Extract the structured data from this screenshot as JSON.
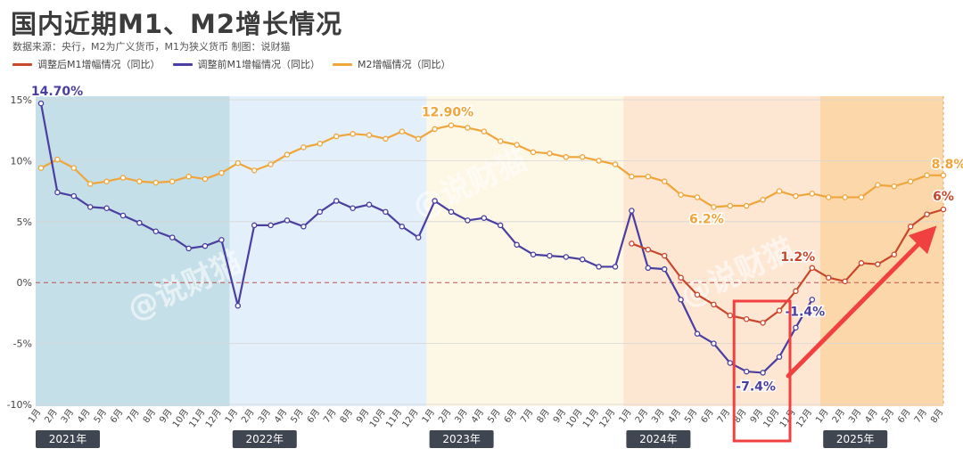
{
  "header": {
    "title": "国内近期M1、M2增长情况",
    "subtitle": "数据来源：央行，M2为广义货币，M1为狭义货币    制图：说财猫"
  },
  "legend": [
    {
      "label": "调整后M1增幅情况（同比）",
      "color": "#c8472b"
    },
    {
      "label": "调整前M1增幅情况（同比）",
      "color": "#4a3fa0"
    },
    {
      "label": "M2增幅情况（同比）",
      "color": "#f0a53a"
    }
  ],
  "watermark": "@说财猫",
  "chart_data": {
    "type": "line",
    "ylim": [
      -10,
      15
    ],
    "yticks": [
      15,
      10,
      5,
      0,
      -5,
      -10
    ],
    "ytick_labels": [
      "15%",
      "10%",
      "5%",
      "0%",
      "-5%",
      "-10%"
    ],
    "x_labels": [
      "1月",
      "2月",
      "3月",
      "4月",
      "5月",
      "6月",
      "7月",
      "8月",
      "9月",
      "10月",
      "11月",
      "12月",
      "1月",
      "2月",
      "3月",
      "4月",
      "5月",
      "6月",
      "7月",
      "8月",
      "9月",
      "10月",
      "11月",
      "12月",
      "1月",
      "2月",
      "3月",
      "4月",
      "5月",
      "6月",
      "7月",
      "8月",
      "9月",
      "10月",
      "11月",
      "12月",
      "1月",
      "2月",
      "3月",
      "4月",
      "5月",
      "6月",
      "7月",
      "8月",
      "9月",
      "10月",
      "11月",
      "12月",
      "1月",
      "2月",
      "3月",
      "4月",
      "5月",
      "6月",
      "7月",
      "8月"
    ],
    "year_labels": [
      "2021年",
      "2022年",
      "2023年",
      "2024年",
      "2025年"
    ],
    "year_start_index": [
      0,
      12,
      24,
      36,
      48
    ],
    "series": [
      {
        "name": "M2增幅情况（同比）",
        "color": "#f0a53a",
        "values": [
          9.4,
          10.1,
          9.4,
          8.1,
          8.3,
          8.6,
          8.3,
          8.2,
          8.3,
          8.7,
          8.5,
          9.0,
          9.8,
          9.2,
          9.7,
          10.5,
          11.1,
          11.4,
          12.0,
          12.2,
          12.1,
          11.8,
          12.4,
          11.8,
          12.6,
          12.9,
          12.7,
          12.4,
          11.6,
          11.3,
          10.7,
          10.6,
          10.3,
          10.3,
          10.0,
          9.7,
          8.7,
          8.7,
          8.3,
          7.2,
          7.0,
          6.2,
          6.3,
          6.3,
          6.8,
          7.5,
          7.1,
          7.3,
          7.0,
          7.0,
          7.0,
          8.0,
          7.9,
          8.3,
          8.8,
          8.8
        ]
      },
      {
        "name": "调整前M1增幅情况（同比）",
        "color": "#4a3fa0",
        "values": [
          14.7,
          7.4,
          7.1,
          6.2,
          6.1,
          5.5,
          4.9,
          4.2,
          3.7,
          2.8,
          3.0,
          3.5,
          -1.9,
          4.7,
          4.7,
          5.1,
          4.6,
          5.8,
          6.7,
          6.1,
          6.4,
          5.8,
          4.6,
          3.7,
          6.7,
          5.8,
          5.1,
          5.3,
          4.7,
          3.1,
          2.3,
          2.2,
          2.1,
          1.9,
          1.3,
          1.3,
          5.9,
          1.2,
          1.1,
          -1.4,
          -4.2,
          -5.0,
          -6.6,
          -7.3,
          -7.4,
          -6.1,
          -3.7,
          -1.4,
          null,
          null,
          null,
          null,
          null,
          null,
          null,
          null
        ]
      },
      {
        "name": "调整后M1增幅情况（同比）",
        "color": "#c8472b",
        "values": [
          null,
          null,
          null,
          null,
          null,
          null,
          null,
          null,
          null,
          null,
          null,
          null,
          null,
          null,
          null,
          null,
          null,
          null,
          null,
          null,
          null,
          null,
          null,
          null,
          null,
          null,
          null,
          null,
          null,
          null,
          null,
          null,
          null,
          null,
          null,
          null,
          3.2,
          2.7,
          2.2,
          0.4,
          -1.0,
          -1.8,
          -2.7,
          -3.0,
          -3.3,
          -2.3,
          -0.7,
          1.2,
          0.4,
          0.1,
          1.6,
          1.5,
          2.3,
          4.6,
          5.6,
          6.0
        ]
      }
    ],
    "annotations": [
      {
        "text": "14.70%",
        "series": 1,
        "index": 0,
        "color": "#4a3fa0"
      },
      {
        "text": "12.90%",
        "series": 0,
        "index": 25,
        "color": "#f0a53a"
      },
      {
        "text": "6.2%",
        "series": 0,
        "index": 41,
        "color": "#f0a53a"
      },
      {
        "text": "8.8%",
        "series": 0,
        "index": 55,
        "color": "#f0a53a"
      },
      {
        "text": "-7.4%",
        "series": 1,
        "index": 44,
        "color": "#4a3fa0"
      },
      {
        "text": "-1.4%",
        "series": 1,
        "index": 47,
        "color": "#4a3fa0"
      },
      {
        "text": "1.2%",
        "series": 2,
        "index": 47,
        "color": "#c8472b"
      },
      {
        "text": "6%",
        "series": 2,
        "index": 55,
        "color": "#c8472b"
      }
    ],
    "grid": true,
    "legend_position": "top-left"
  }
}
